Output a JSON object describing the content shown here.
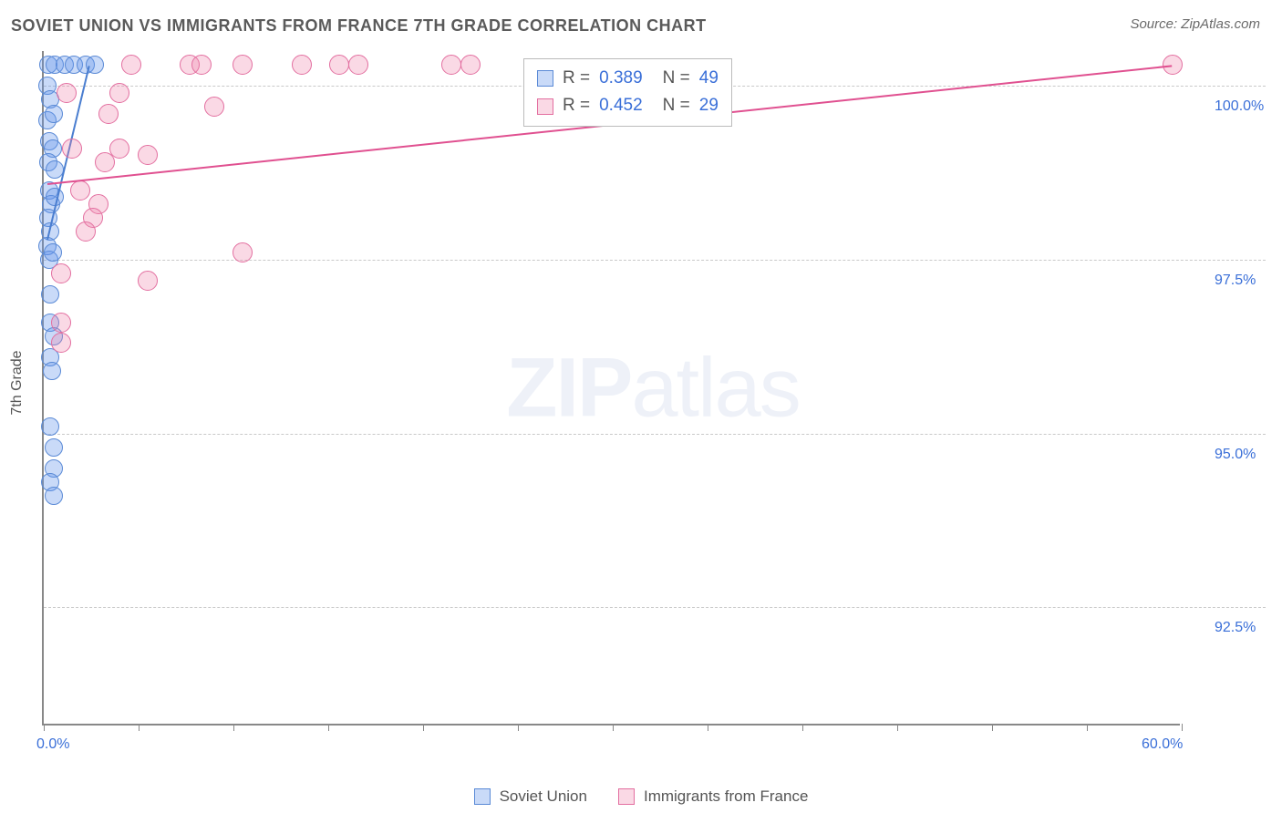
{
  "header": {
    "title": "SOVIET UNION VS IMMIGRANTS FROM FRANCE 7TH GRADE CORRELATION CHART",
    "source": "Source: ZipAtlas.com"
  },
  "chart": {
    "type": "scatter",
    "ylabel": "7th Grade",
    "watermark_zip": "ZIP",
    "watermark_atlas": "atlas",
    "background_color": "#ffffff",
    "grid_color": "#c9c9c9",
    "axis_color": "#888888",
    "label_color": "#555555",
    "value_color": "#3a6fd8",
    "xlim": [
      0,
      60
    ],
    "ylim": [
      90.8,
      100.5
    ],
    "xticks": [
      0,
      5,
      10,
      15,
      20,
      25,
      30,
      35,
      40,
      45,
      50,
      55,
      60
    ],
    "xtick_labels": {
      "0": "0.0%",
      "60": "60.0%"
    },
    "yticks": [
      92.5,
      95.0,
      97.5,
      100.0
    ],
    "ytick_labels": [
      "92.5%",
      "95.0%",
      "97.5%",
      "100.0%"
    ],
    "series": [
      {
        "name": "Soviet Union",
        "color_fill": "rgba(100,150,235,0.35)",
        "color_stroke": "#5a8ad6",
        "R": "0.389",
        "N": "49",
        "marker_radius": 10,
        "trend": {
          "x1": 0.2,
          "y1": 97.8,
          "x2": 2.4,
          "y2": 100.3,
          "color": "#4a7ed0"
        },
        "points": [
          [
            0.25,
            100.3
          ],
          [
            0.6,
            100.3
          ],
          [
            1.1,
            100.3
          ],
          [
            1.6,
            100.3
          ],
          [
            2.2,
            100.3
          ],
          [
            2.7,
            100.3
          ],
          [
            0.2,
            100.0
          ],
          [
            0.35,
            99.8
          ],
          [
            0.2,
            99.5
          ],
          [
            0.55,
            99.6
          ],
          [
            0.3,
            99.2
          ],
          [
            0.5,
            99.1
          ],
          [
            0.25,
            98.9
          ],
          [
            0.6,
            98.8
          ],
          [
            0.3,
            98.5
          ],
          [
            0.4,
            98.3
          ],
          [
            0.6,
            98.4
          ],
          [
            0.25,
            98.1
          ],
          [
            0.35,
            97.9
          ],
          [
            0.2,
            97.7
          ],
          [
            0.3,
            97.5
          ],
          [
            0.5,
            97.6
          ],
          [
            0.35,
            97.0
          ],
          [
            0.35,
            96.6
          ],
          [
            0.55,
            96.4
          ],
          [
            0.35,
            96.1
          ],
          [
            0.45,
            95.9
          ],
          [
            0.35,
            95.1
          ],
          [
            0.55,
            94.8
          ],
          [
            0.55,
            94.5
          ],
          [
            0.35,
            94.3
          ],
          [
            0.55,
            94.1
          ]
        ]
      },
      {
        "name": "Immigrants from France",
        "color_fill": "rgba(240,130,170,0.30)",
        "color_stroke": "#e36fa0",
        "R": "0.452",
        "N": "29",
        "marker_radius": 11,
        "trend": {
          "x1": 0.2,
          "y1": 98.6,
          "x2": 59.5,
          "y2": 100.3,
          "color": "#e05090"
        },
        "points": [
          [
            4.6,
            100.3
          ],
          [
            7.7,
            100.3
          ],
          [
            8.3,
            100.3
          ],
          [
            10.5,
            100.3
          ],
          [
            13.6,
            100.3
          ],
          [
            15.6,
            100.3
          ],
          [
            16.6,
            100.3
          ],
          [
            21.5,
            100.3
          ],
          [
            22.5,
            100.3
          ],
          [
            59.5,
            100.3
          ],
          [
            1.2,
            99.9
          ],
          [
            4.0,
            99.9
          ],
          [
            9.0,
            99.7
          ],
          [
            3.4,
            99.6
          ],
          [
            1.5,
            99.1
          ],
          [
            4.0,
            99.1
          ],
          [
            5.5,
            99.0
          ],
          [
            3.2,
            98.9
          ],
          [
            1.9,
            98.5
          ],
          [
            2.9,
            98.3
          ],
          [
            2.6,
            98.1
          ],
          [
            2.2,
            97.9
          ],
          [
            10.5,
            97.6
          ],
          [
            5.5,
            97.2
          ],
          [
            0.9,
            96.6
          ],
          [
            0.9,
            96.3
          ],
          [
            0.9,
            97.3
          ]
        ]
      }
    ]
  },
  "legend": {
    "series1": "Soviet Union",
    "series2": "Immigrants from France"
  },
  "stats_labels": {
    "R": "R =",
    "N": "N ="
  }
}
